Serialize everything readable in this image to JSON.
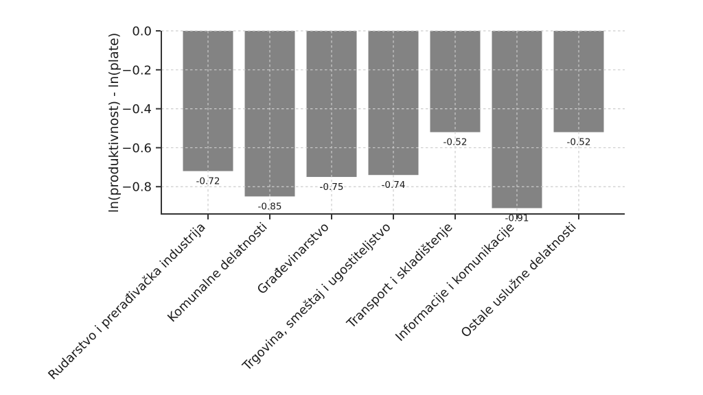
{
  "chart_data": {
    "type": "bar",
    "title": "",
    "xlabel": "",
    "ylabel": "ln(produktivnost) - ln(plate)",
    "categories": [
      "Rudarstvo i prerađivačka industrija",
      "Komunalne delatnosti",
      "Građevinarstvo",
      "Trgovina, smeštaj i ugostiteljstvo",
      "Transport i skladištenje",
      "Informacije i komunikacije",
      "Ostale uslužne delatnosti"
    ],
    "values": [
      -0.72,
      -0.85,
      -0.75,
      -0.74,
      -0.52,
      -0.91,
      -0.52
    ],
    "bar_labels": [
      "-0.72",
      "-0.85",
      "-0.75",
      "-0.74",
      "-0.52",
      "-0.91",
      "-0.52"
    ],
    "yticks": [
      0.0,
      -0.2,
      -0.4,
      -0.6,
      -0.8
    ],
    "ytick_labels": [
      "0.0",
      "−0.2",
      "−0.4",
      "−0.6",
      "−0.8"
    ],
    "ylim": [
      -0.94,
      0
    ],
    "grid": "dashed-both-axes",
    "legend": "none",
    "x_tick_rotation_deg": 45,
    "colors": {
      "bar": "#838383",
      "grid": "#cccccc",
      "axis": "#333333",
      "text": "#1a1a1a",
      "background": "#ffffff"
    }
  }
}
